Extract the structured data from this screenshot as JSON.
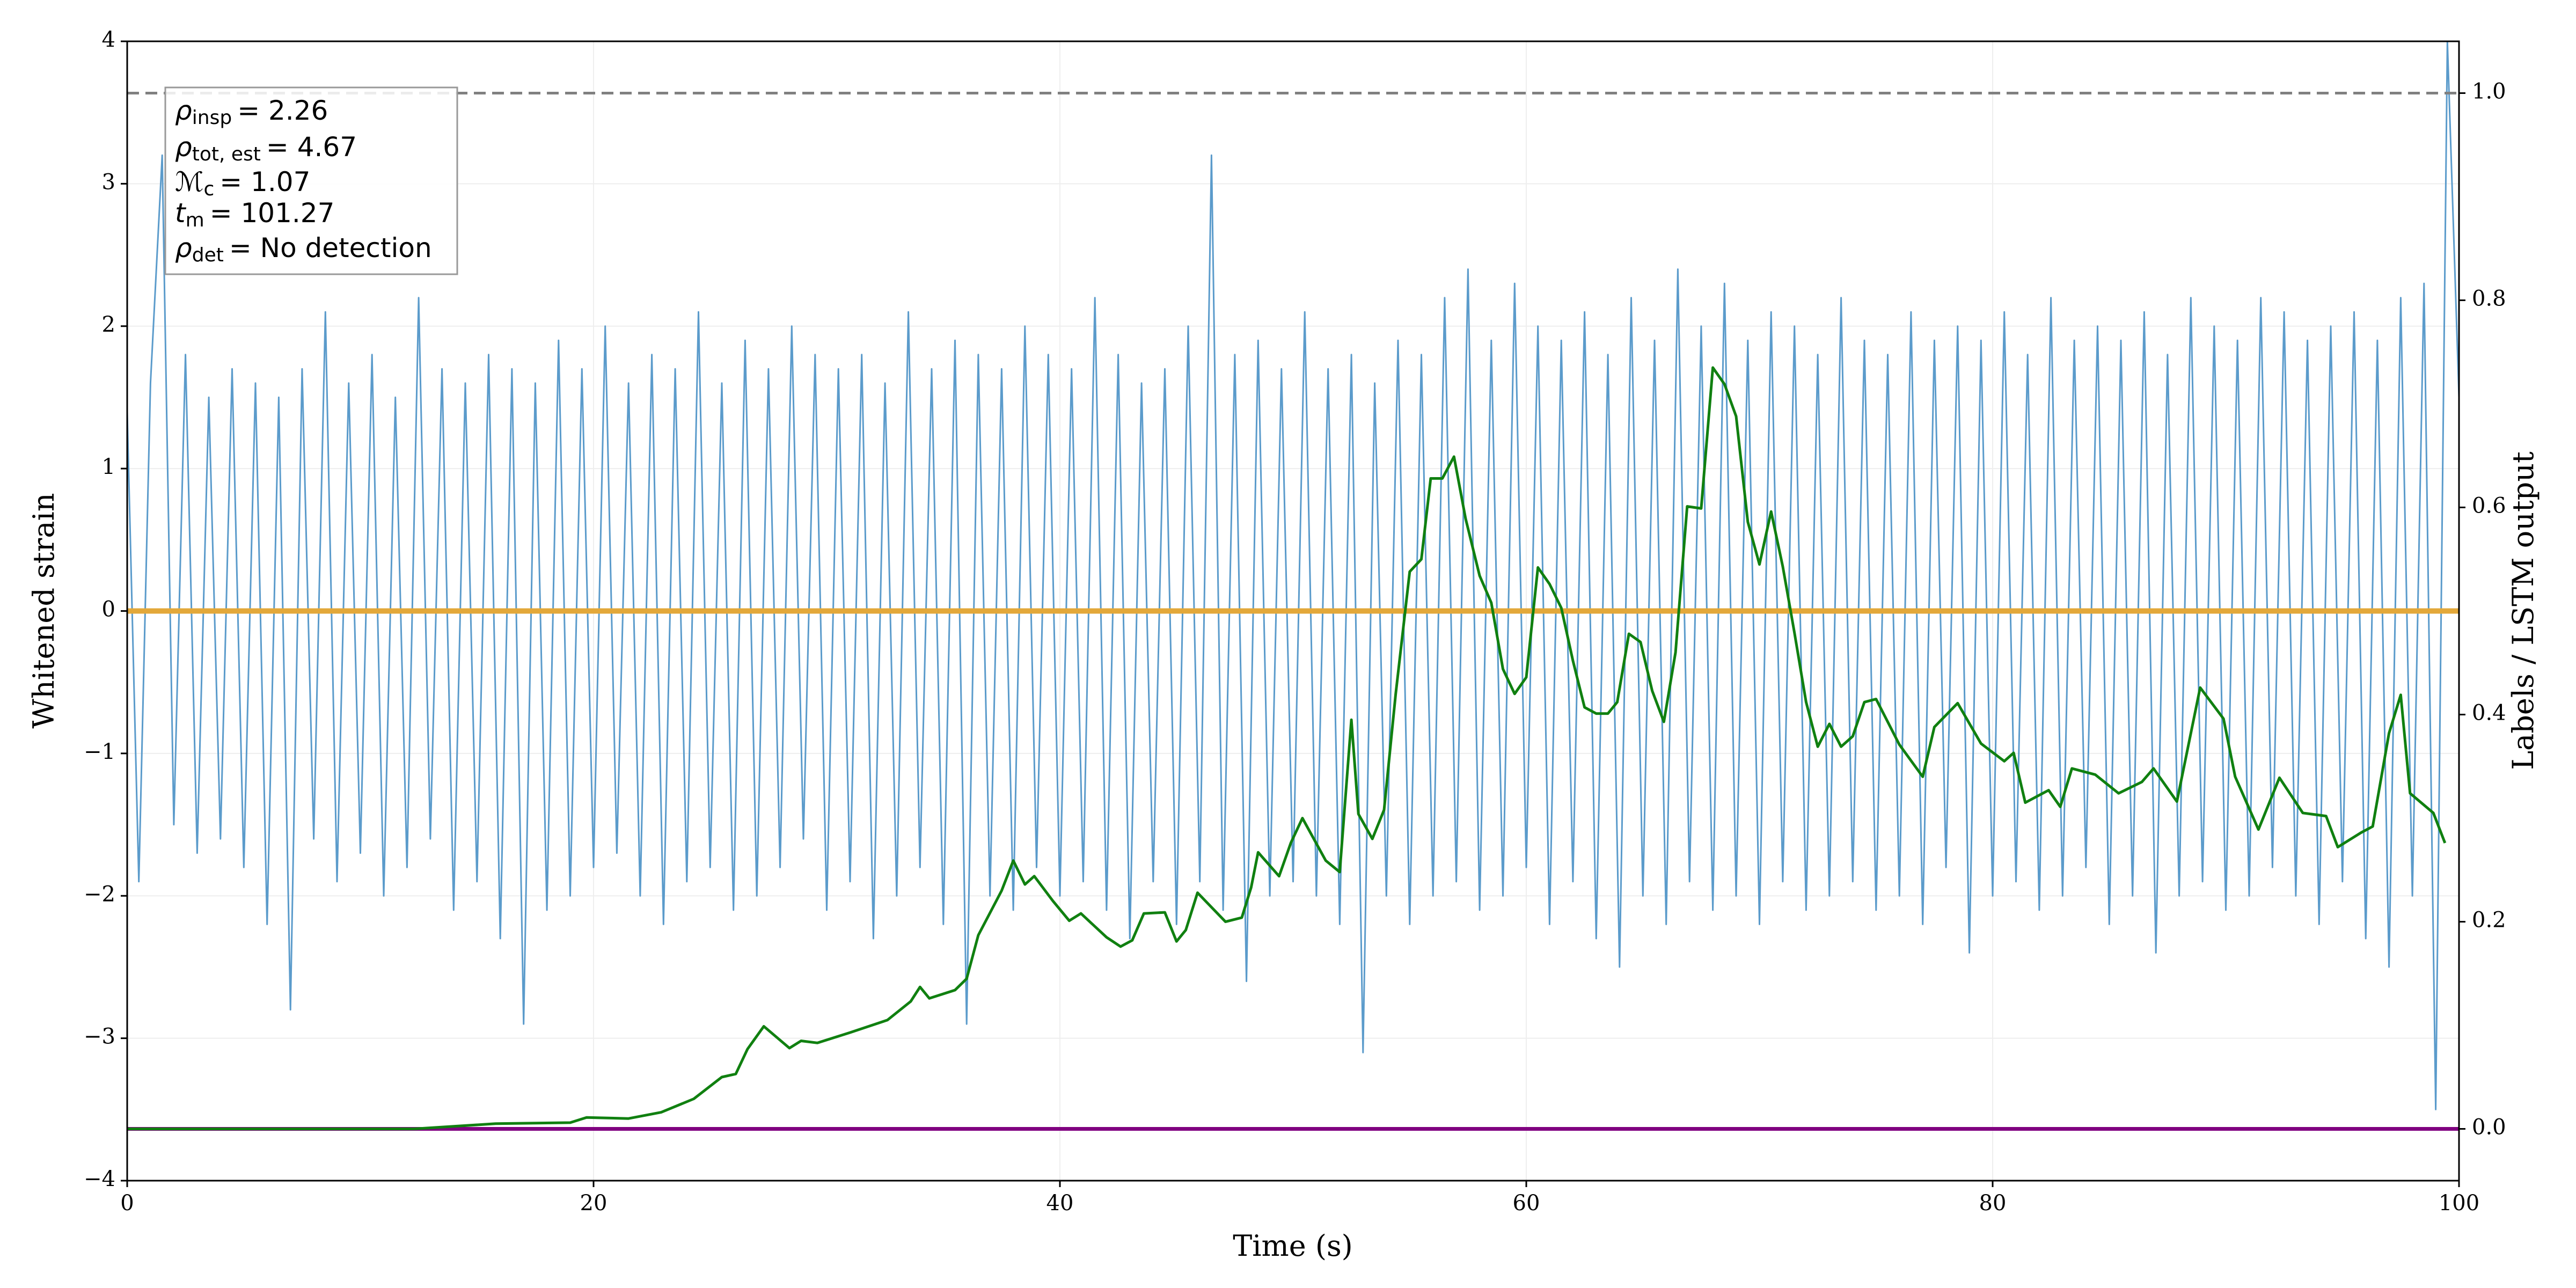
{
  "chart_data": {
    "type": "line",
    "xlabel": "Time (s)",
    "ylabel": "Whitened strain",
    "y2label": "Labels / LSTM output",
    "xlim": [
      0,
      100
    ],
    "xticks": [
      0,
      20,
      40,
      60,
      80,
      100
    ],
    "ylim": [
      -4,
      4
    ],
    "yticks": [
      {
        "value": -4,
        "label": "−4"
      },
      {
        "value": -3,
        "label": "−3"
      },
      {
        "value": -2,
        "label": "−2"
      },
      {
        "value": -1,
        "label": "−1"
      },
      0,
      1,
      2,
      3,
      4
    ],
    "y2lim": [
      -0.05,
      1.05
    ],
    "y2ticks": [
      {
        "value": 0,
        "label": "0.0"
      },
      0.2,
      0.4,
      0.6,
      0.8,
      {
        "value": 1,
        "label": "1.0"
      }
    ],
    "grid": true,
    "annotation": [
      {
        "symbol": "ρ",
        "sub": "insp",
        "text": "= 2.26"
      },
      {
        "symbol": "ρ",
        "sub": "tot, est",
        "text": "= 4.67"
      },
      {
        "symbol": "ℳ",
        "sub": "c",
        "text": "= 1.07"
      },
      {
        "symbol": "t",
        "sub": "m",
        "text": "= 101.27"
      },
      {
        "symbol": "ρ",
        "sub": "det",
        "text": "= No detection"
      }
    ],
    "series": [
      {
        "color": "#5b9bcb",
        "x": [
          0,
          0.5,
          1,
          1.5,
          2,
          2.5,
          3,
          3.5,
          4,
          4.5,
          5,
          5.5,
          6,
          6.5,
          7,
          7.5,
          8,
          8.5,
          9,
          9.5,
          10,
          10.5,
          11,
          11.5,
          12,
          12.5,
          13,
          13.5,
          14,
          14.5,
          15,
          15.5,
          16,
          16.5,
          17,
          17.5,
          18,
          18.5,
          19,
          19.5,
          20,
          20.5,
          21,
          21.5,
          22,
          22.5,
          23,
          23.5,
          24,
          24.5,
          25,
          25.5,
          26,
          26.5,
          27,
          27.5,
          28,
          28.5,
          29,
          29.5,
          30,
          30.5,
          31,
          31.5,
          32,
          32.5,
          33,
          33.5,
          34,
          34.5,
          35,
          35.5,
          36,
          36.5,
          37,
          37.5,
          38,
          38.5,
          39,
          39.5,
          40,
          40.5,
          41,
          41.5,
          42,
          42.5,
          43,
          43.5,
          44,
          44.5,
          45,
          45.5,
          46,
          46.5,
          47,
          47.5,
          48,
          48.5,
          49,
          49.5,
          50,
          50.5,
          51,
          51.5,
          52,
          52.5,
          53,
          53.5,
          54,
          54.5,
          55,
          55.5,
          56,
          56.5,
          57,
          57.5,
          58,
          58.5,
          59,
          59.5,
          60,
          60.5,
          61,
          61.5,
          62,
          62.5,
          63,
          63.5,
          64,
          64.5,
          65,
          65.5,
          66,
          66.5,
          67,
          67.5,
          68,
          68.5,
          69,
          69.5,
          70,
          70.5,
          71,
          71.5,
          72,
          72.5,
          73,
          73.5,
          74,
          74.5,
          75,
          75.5,
          76,
          76.5,
          77,
          77.5,
          78,
          78.5,
          79,
          79.5,
          80,
          80.5,
          81,
          81.5,
          82,
          82.5,
          83,
          83.5,
          84,
          84.5,
          85,
          85.5,
          86,
          86.5,
          87,
          87.5,
          88,
          88.5,
          89,
          89.5,
          90,
          90.5,
          91,
          91.5,
          92,
          92.5,
          93,
          93.5,
          94,
          94.5,
          95,
          95.5,
          96,
          96.5,
          97,
          97.5,
          98,
          98.5,
          99,
          99.5,
          100
        ],
        "values": [
          1.4,
          -1.9,
          1.6,
          3.2,
          -1.5,
          1.8,
          -1.7,
          1.5,
          -1.6,
          1.7,
          -1.8,
          1.6,
          -2.2,
          1.5,
          -2.8,
          1.7,
          -1.6,
          2.1,
          -1.9,
          1.6,
          -1.7,
          1.8,
          -2.0,
          1.5,
          -1.8,
          2.2,
          -1.6,
          1.7,
          -2.1,
          1.6,
          -1.9,
          1.8,
          -2.3,
          1.7,
          -2.9,
          1.6,
          -2.1,
          1.9,
          -2.0,
          1.7,
          -1.8,
          2.0,
          -1.7,
          1.6,
          -2.0,
          1.8,
          -2.2,
          1.7,
          -1.9,
          2.1,
          -1.8,
          1.6,
          -2.1,
          1.9,
          -2.0,
          1.7,
          -1.8,
          2.0,
          -1.6,
          1.8,
          -2.1,
          1.7,
          -1.9,
          1.8,
          -2.3,
          1.6,
          -2.0,
          2.1,
          -1.8,
          1.7,
          -2.2,
          1.9,
          -2.9,
          1.8,
          -2.0,
          1.7,
          -2.1,
          2.0,
          -1.8,
          1.8,
          -2.0,
          1.7,
          -1.9,
          2.2,
          -2.1,
          1.8,
          -2.3,
          1.6,
          -1.9,
          1.7,
          -2.2,
          2.0,
          -1.9,
          3.2,
          -2.1,
          1.8,
          -2.6,
          1.9,
          -2.0,
          1.7,
          -1.9,
          2.1,
          -2.0,
          1.7,
          -2.2,
          1.8,
          -3.1,
          1.6,
          -2.0,
          1.9,
          -2.2,
          1.8,
          -2.0,
          2.2,
          -1.9,
          2.4,
          -2.1,
          1.9,
          -2.0,
          2.3,
          -1.8,
          2.0,
          -2.2,
          1.9,
          -1.9,
          2.1,
          -2.3,
          1.8,
          -2.5,
          2.2,
          -2.0,
          1.9,
          -2.2,
          2.4,
          -1.9,
          2.0,
          -2.1,
          2.3,
          -2.0,
          1.9,
          -2.2,
          2.1,
          -1.9,
          2.0,
          -2.1,
          1.8,
          -2.0,
          2.2,
          -1.9,
          1.9,
          -2.1,
          1.8,
          -2.0,
          2.1,
          -2.2,
          1.9,
          -1.8,
          2.0,
          -2.4,
          1.9,
          -2.0,
          2.1,
          -1.9,
          1.8,
          -2.1,
          2.2,
          -2.0,
          1.9,
          -1.8,
          2.0,
          -2.2,
          1.9,
          -2.0,
          2.1,
          -2.4,
          1.8,
          -2.0,
          2.2,
          -1.9,
          2.0,
          -2.1,
          1.9,
          -2.0,
          2.2,
          -1.8,
          2.1,
          -2.0,
          1.9,
          -2.2,
          2.0,
          -1.9,
          2.1,
          -2.3,
          1.9,
          -2.5,
          2.2,
          -2.0,
          2.3,
          -3.5,
          4.0,
          1.5
        ]
      },
      {
        "color": "#e3a83a",
        "x": [
          0,
          100
        ],
        "values": [
          0,
          0
        ]
      },
      {
        "color": "#800080",
        "axis": "y2",
        "x": [
          0,
          100
        ],
        "values": [
          0,
          0
        ]
      },
      {
        "color": "#108010",
        "axis": "y2",
        "x": [
          0,
          12.3,
          15.8,
          19.0,
          19.7,
          21.5,
          22.9,
          24.3,
          25.5,
          26.1,
          26.6,
          27.3,
          28.4,
          28.9,
          29.6,
          31.0,
          32.6,
          33.6,
          34.0,
          34.4,
          35.5,
          36.0,
          36.5,
          37.5,
          38.0,
          38.5,
          38.9,
          39.7,
          40.4,
          40.9,
          42.0,
          42.6,
          43.1,
          43.6,
          44.5,
          45.0,
          45.4,
          45.9,
          47.1,
          47.8,
          48.2,
          48.5,
          49.4,
          49.9,
          50.4,
          51.4,
          52.0,
          52.5,
          52.8,
          53.4,
          53.9,
          54.4,
          55.0,
          55.5,
          55.9,
          56.4,
          56.9,
          57.4,
          58.0,
          58.5,
          59.0,
          59.5,
          60.0,
          60.5,
          61.0,
          61.5,
          62.0,
          62.5,
          63.0,
          63.5,
          63.9,
          64.4,
          64.9,
          65.4,
          65.9,
          66.4,
          66.9,
          67.5,
          68.0,
          68.5,
          69.0,
          69.5,
          70.0,
          70.5,
          71.0,
          71.5,
          72.0,
          72.5,
          73.0,
          73.5,
          74.0,
          74.5,
          75.0,
          76.0,
          77.0,
          77.5,
          78.5,
          79.5,
          80.5,
          80.9,
          81.4,
          82.4,
          82.9,
          83.4,
          84.4,
          85.4,
          86.4,
          86.9,
          87.9,
          88.9,
          89.9,
          90.4,
          91.4,
          92.3,
          93.3,
          94.3,
          94.8,
          95.8,
          96.3,
          97.0,
          97.5,
          97.9,
          98.9,
          99.4
        ],
        "values": [
          0,
          0,
          0.005,
          0.006,
          0.011,
          0.01,
          0.016,
          0.029,
          0.05,
          0.053,
          0.077,
          0.099,
          0.078,
          0.085,
          0.083,
          0.093,
          0.105,
          0.123,
          0.137,
          0.126,
          0.134,
          0.145,
          0.187,
          0.23,
          0.259,
          0.236,
          0.244,
          0.22,
          0.201,
          0.208,
          0.185,
          0.176,
          0.182,
          0.208,
          0.209,
          0.181,
          0.192,
          0.228,
          0.2,
          0.204,
          0.233,
          0.267,
          0.244,
          0.276,
          0.3,
          0.259,
          0.248,
          0.395,
          0.304,
          0.28,
          0.308,
          0.42,
          0.538,
          0.55,
          0.628,
          0.628,
          0.649,
          0.589,
          0.534,
          0.508,
          0.444,
          0.42,
          0.436,
          0.542,
          0.526,
          0.503,
          0.452,
          0.407,
          0.401,
          0.401,
          0.412,
          0.478,
          0.47,
          0.423,
          0.393,
          0.46,
          0.601,
          0.599,
          0.735,
          0.719,
          0.688,
          0.586,
          0.545,
          0.596,
          0.543,
          0.479,
          0.412,
          0.369,
          0.391,
          0.369,
          0.379,
          0.412,
          0.415,
          0.371,
          0.34,
          0.388,
          0.411,
          0.372,
          0.355,
          0.363,
          0.315,
          0.327,
          0.311,
          0.348,
          0.342,
          0.324,
          0.335,
          0.348,
          0.316,
          0.426,
          0.396,
          0.34,
          0.289,
          0.339,
          0.305,
          0.302,
          0.272,
          0.286,
          0.292,
          0.382,
          0.419,
          0.324,
          0.305,
          0.276
        ]
      },
      {
        "color": "#808080",
        "axis": "y2",
        "dash": true,
        "x": [
          0,
          100
        ],
        "values": [
          1,
          1
        ]
      }
    ]
  }
}
